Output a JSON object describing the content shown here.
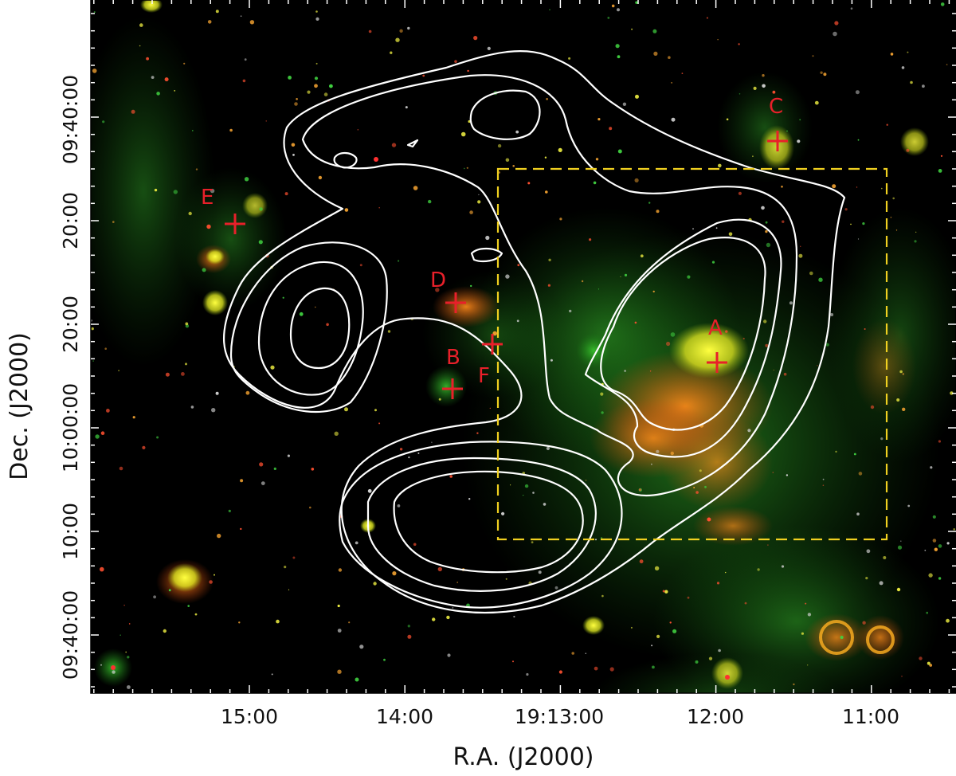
{
  "figure": {
    "xlabel": "R.A. (J2000)",
    "ylabel": "Dec. (J2000)",
    "x_ticks": [
      "15:00",
      "14:00",
      "19:13:00",
      "12:00",
      "11:00"
    ],
    "y_ticks": [
      "20:00",
      "10:00:00",
      "10:00",
      "09:40:00",
      "20:00",
      "09:40:00"
    ],
    "sources": [
      {
        "id": "A",
        "label": "A"
      },
      {
        "id": "B",
        "label": "B"
      },
      {
        "id": "C",
        "label": "C"
      },
      {
        "id": "D",
        "label": "D"
      },
      {
        "id": "E",
        "label": "E"
      },
      {
        "id": "F",
        "label": "F"
      }
    ],
    "colors": {
      "background": "#000000",
      "marker": "#e8202a",
      "contour": "#ffffff",
      "box": "#f0d020",
      "emission_green": "#2fbf2a",
      "emission_red": "#e85a1a"
    }
  }
}
